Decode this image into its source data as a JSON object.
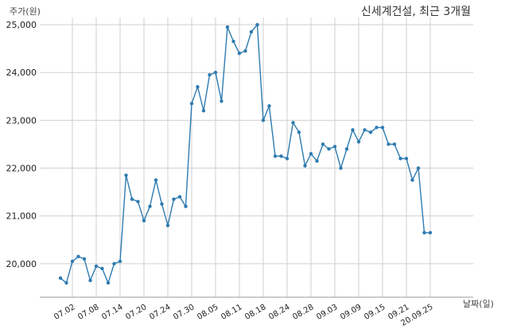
{
  "chart_data": {
    "type": "line",
    "title": "신세계건설, 최근 3개월",
    "ylabel": "주가(원)",
    "xlabel": "날짜(일)",
    "ylim": [
      19300,
      25150
    ],
    "yticks": [
      20000,
      21000,
      22000,
      23000,
      24000,
      25000
    ],
    "ytick_labels": [
      "20,000",
      "21,000",
      "22,000",
      "23,000",
      "24,000",
      "25,000"
    ],
    "xtick_labels": [
      "07.02",
      "07.08",
      "07.14",
      "07.20",
      "07.24",
      "07.30",
      "08.05",
      "08.11",
      "08.18",
      "08.24",
      "08.28",
      "09.03",
      "09.09",
      "09.15",
      "09.21",
      "20.09.25"
    ],
    "xtick_index": [
      2,
      6,
      10,
      14,
      18,
      22,
      26,
      30,
      34,
      38,
      42,
      46,
      50,
      54,
      58,
      62
    ],
    "grid": true,
    "color": "#2e7bb0",
    "series": [
      {
        "values": [
          19700,
          19600,
          20050,
          20150,
          20100,
          19650,
          19950,
          19900,
          19600,
          20000,
          20050,
          21850,
          21350,
          21300,
          20900,
          21200,
          21750,
          21250,
          20800,
          21350,
          21400,
          21200,
          23350,
          23700,
          23200,
          23950,
          24000,
          23400,
          24950,
          24650,
          24400,
          24450,
          24850,
          25000,
          23000,
          23300,
          22250,
          22250,
          22200,
          22950,
          22750,
          22050,
          22300,
          22150,
          22500,
          22400,
          22450,
          22000,
          22400,
          22800,
          22550,
          22800,
          22750,
          22850,
          22850,
          22500,
          22500,
          22200,
          22200,
          21750,
          22000,
          20650,
          20650
        ]
      }
    ]
  }
}
